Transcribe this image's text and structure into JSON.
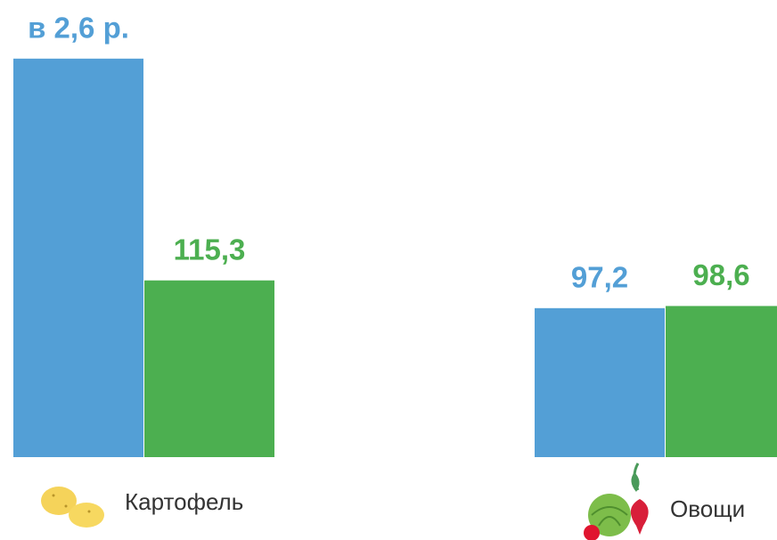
{
  "chart_data": {
    "type": "bar",
    "categories": [
      "Картофель",
      "Овощи"
    ],
    "series": [
      {
        "color": "#539fd6",
        "values": [
          260,
          97.2
        ],
        "value_labels": [
          "в 2,6 р.",
          "97,2"
        ]
      },
      {
        "color": "#4caf50",
        "values": [
          115.3,
          98.6
        ],
        "value_labels": [
          "115,3",
          "98,6"
        ]
      }
    ]
  }
}
